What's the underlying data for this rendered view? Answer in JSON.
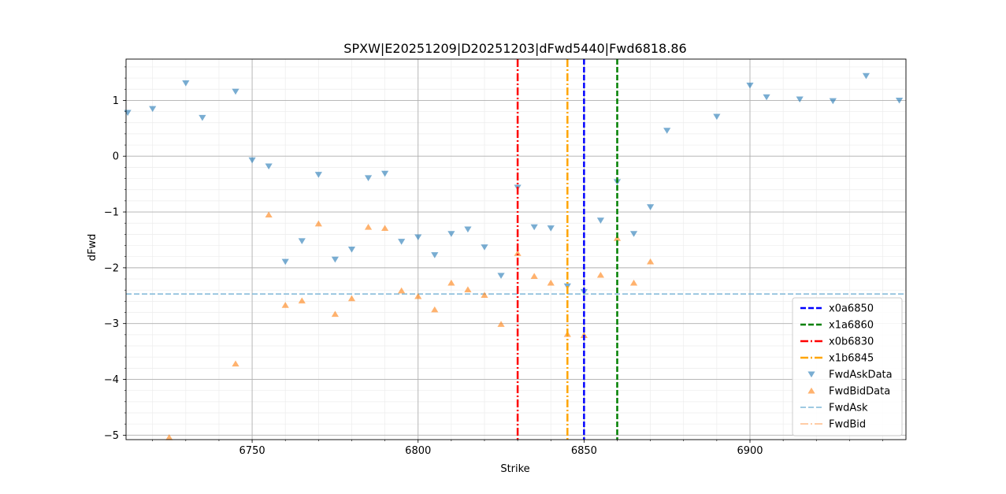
{
  "chart_data": {
    "type": "scatter",
    "title": "SPXW|E20251209|D20251203|dFwd5440|Fwd6818.86",
    "xlabel": "Strike",
    "ylabel": "dFwd",
    "xlim": [
      6712,
      6947
    ],
    "ylim": [
      -5.08,
      1.74
    ],
    "grid": "major and minor",
    "legend_position": "lower-right",
    "x_ticks": [
      {
        "value": 6750,
        "label": "6750"
      },
      {
        "value": 6800,
        "label": "6800"
      },
      {
        "value": 6850,
        "label": "6850"
      },
      {
        "value": 6900,
        "label": "6900"
      }
    ],
    "y_ticks": [
      {
        "value": 1,
        "label": "1"
      },
      {
        "value": 0,
        "label": "0"
      },
      {
        "value": -1,
        "label": "−1"
      },
      {
        "value": -2,
        "label": "−2"
      },
      {
        "value": -3,
        "label": "−3"
      },
      {
        "value": -4,
        "label": "−4"
      },
      {
        "value": -5,
        "label": "−5"
      }
    ],
    "vlines": [
      {
        "name": "x0a6850",
        "x": 6850,
        "color": "#0000ff",
        "style": "dashed"
      },
      {
        "name": "x1a6860",
        "x": 6860,
        "color": "#008000",
        "style": "dashed"
      },
      {
        "name": "x0b6830",
        "x": 6830,
        "color": "#ff0000",
        "style": "dashdot"
      },
      {
        "name": "x1b6845",
        "x": 6845,
        "color": "#ffa500",
        "style": "dashdot"
      }
    ],
    "hlines": [
      {
        "name": "FwdAsk",
        "y": -2.47,
        "color": "#7fb8d8",
        "style": "dashed"
      },
      {
        "name": "FwdBid",
        "y": null,
        "color": "#ffbb88",
        "style": "dashdot"
      }
    ],
    "series": [
      {
        "name": "FwdAskData",
        "marker": "triangle-down",
        "color": "#1f77b4",
        "points": [
          [
            6712.5,
            0.78
          ],
          [
            6720,
            0.85
          ],
          [
            6730,
            1.31
          ],
          [
            6735,
            0.69
          ],
          [
            6745,
            1.16
          ],
          [
            6750,
            -0.07
          ],
          [
            6755,
            -0.18
          ],
          [
            6760,
            -1.89
          ],
          [
            6765,
            -1.52
          ],
          [
            6770,
            -0.33
          ],
          [
            6775,
            -1.85
          ],
          [
            6780,
            -1.67
          ],
          [
            6785,
            -0.39
          ],
          [
            6790,
            -0.31
          ],
          [
            6795,
            -1.53
          ],
          [
            6800,
            -1.45
          ],
          [
            6805,
            -1.77
          ],
          [
            6810,
            -1.39
          ],
          [
            6815,
            -1.31
          ],
          [
            6820,
            -1.63
          ],
          [
            6825,
            -2.14
          ],
          [
            6830,
            -0.56
          ],
          [
            6835,
            -1.27
          ],
          [
            6840,
            -1.29
          ],
          [
            6845,
            -2.33
          ],
          [
            6850,
            -2.43
          ],
          [
            6855,
            -1.15
          ],
          [
            6860,
            -0.46
          ],
          [
            6865,
            -1.39
          ],
          [
            6870,
            -0.91
          ],
          [
            6875,
            0.46
          ],
          [
            6890,
            0.71
          ],
          [
            6900,
            1.27
          ],
          [
            6905,
            1.06
          ],
          [
            6915,
            1.02
          ],
          [
            6925,
            0.99
          ],
          [
            6935,
            1.44
          ],
          [
            6945,
            1.0
          ]
        ]
      },
      {
        "name": "FwdBidData",
        "marker": "triangle-up",
        "color": "#ff7f0e",
        "points": [
          [
            6725,
            -5.04
          ],
          [
            6745,
            -3.72
          ],
          [
            6755,
            -1.05
          ],
          [
            6760,
            -2.67
          ],
          [
            6765,
            -2.59
          ],
          [
            6770,
            -1.21
          ],
          [
            6775,
            -2.83
          ],
          [
            6780,
            -2.55
          ],
          [
            6785,
            -1.27
          ],
          [
            6790,
            -1.29
          ],
          [
            6795,
            -2.41
          ],
          [
            6800,
            -2.51
          ],
          [
            6805,
            -2.75
          ],
          [
            6810,
            -2.27
          ],
          [
            6815,
            -2.39
          ],
          [
            6820,
            -2.49
          ],
          [
            6825,
            -3.01
          ],
          [
            6830,
            -1.74
          ],
          [
            6835,
            -2.15
          ],
          [
            6840,
            -2.27
          ],
          [
            6845,
            -3.19
          ],
          [
            6850,
            -3.21
          ],
          [
            6855,
            -2.13
          ],
          [
            6860,
            -1.47
          ],
          [
            6865,
            -2.27
          ],
          [
            6870,
            -1.89
          ]
        ]
      }
    ],
    "legend": [
      {
        "label": "x0a6850",
        "kind": "line",
        "color": "#0000ff",
        "style": "dashed"
      },
      {
        "label": "x1a6860",
        "kind": "line",
        "color": "#008000",
        "style": "dashed"
      },
      {
        "label": "x0b6830",
        "kind": "line",
        "color": "#ff0000",
        "style": "dashdot"
      },
      {
        "label": "x1b6845",
        "kind": "line",
        "color": "#ffa500",
        "style": "dashdot"
      },
      {
        "label": "FwdAskData",
        "kind": "marker-down",
        "color": "#1f77b4"
      },
      {
        "label": "FwdBidData",
        "kind": "marker-up",
        "color": "#ff7f0e"
      },
      {
        "label": "FwdAsk",
        "kind": "thin-line",
        "color": "#7fb8d8",
        "style": "dashed"
      },
      {
        "label": "FwdBid",
        "kind": "thin-line",
        "color": "#ffbb88",
        "style": "dashdot"
      }
    ]
  }
}
